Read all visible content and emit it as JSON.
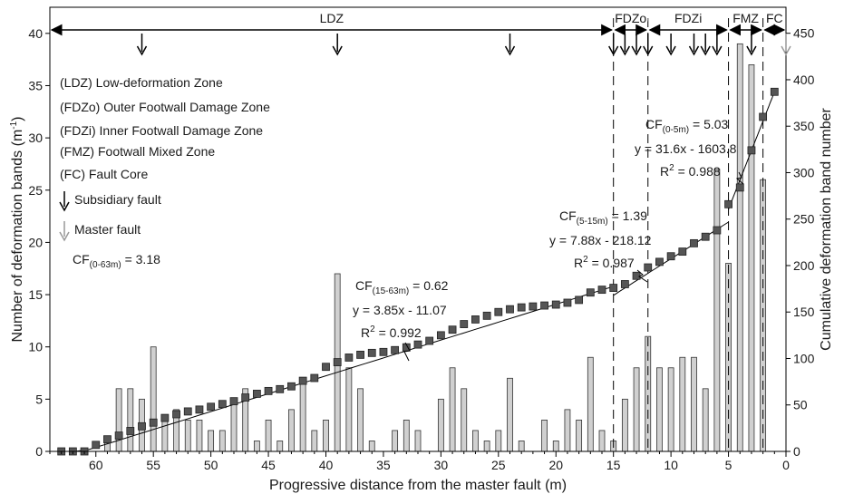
{
  "chart_data": {
    "type": "bar",
    "xlabel": "Progressive distance from the master fault (m)",
    "ylabel_left": "Number of deformation bands (m",
    "ylabel_left_sup": "-1",
    "ylabel_left_end": ")",
    "ylabel_right": "Cumulative deformation band number",
    "xlim": [
      64,
      0
    ],
    "ylim_left": [
      0,
      42.5
    ],
    "ylim_right": [
      0,
      478
    ],
    "x_ticks": [
      60,
      55,
      50,
      45,
      40,
      35,
      30,
      25,
      20,
      15,
      10,
      5,
      0
    ],
    "y_left_ticks": [
      0,
      5,
      10,
      15,
      20,
      25,
      30,
      35,
      40
    ],
    "y_right_ticks": [
      0,
      50,
      100,
      150,
      200,
      250,
      300,
      350,
      400,
      450
    ],
    "bars": {
      "name": "Number of deformation bands",
      "color": "#d0d0d0",
      "x": [
        63,
        62,
        61,
        60,
        59,
        58,
        57,
        56,
        55,
        54,
        53,
        52,
        51,
        50,
        49,
        48,
        47,
        46,
        45,
        44,
        43,
        42,
        41,
        40,
        39,
        38,
        37,
        36,
        35,
        34,
        33,
        32,
        31,
        30,
        29,
        28,
        27,
        26,
        25,
        24,
        23,
        22,
        21,
        20,
        19,
        18,
        17,
        16,
        15,
        14,
        13,
        12,
        11,
        10,
        9,
        8,
        7,
        6,
        5,
        4,
        3,
        2,
        1
      ],
      "values": [
        0,
        0,
        0,
        0,
        1,
        6,
        6,
        5,
        10,
        3,
        4,
        3,
        3,
        2,
        2,
        5,
        6,
        1,
        3,
        1,
        4,
        7,
        2,
        3,
        17,
        8,
        6,
        1,
        0,
        2,
        3,
        2,
        0,
        5,
        8,
        6,
        2,
        1,
        2,
        7,
        1,
        0,
        3,
        1,
        4,
        3,
        9,
        2,
        1,
        5,
        8,
        11,
        8,
        8,
        9,
        9,
        6,
        27,
        18,
        39,
        37,
        26,
        0
      ]
    },
    "cumulative": {
      "name": "Cumulative deformation band number",
      "color": "#555555",
      "x": [
        63,
        62,
        61,
        60,
        59,
        58,
        57,
        56,
        55,
        54,
        53,
        52,
        51,
        50,
        49,
        48,
        47,
        46,
        45,
        44,
        43,
        42,
        41,
        40,
        39,
        38,
        37,
        36,
        35,
        34,
        33,
        32,
        31,
        30,
        29,
        28,
        27,
        26,
        25,
        24,
        23,
        22,
        21,
        20,
        19,
        18,
        17,
        16,
        15,
        14,
        13,
        12,
        11,
        10,
        9,
        8,
        7,
        6,
        5,
        4,
        3,
        2,
        1
      ],
      "values": [
        0,
        0,
        0,
        7,
        13,
        17,
        22,
        27,
        31,
        36,
        40,
        43,
        45,
        48,
        51,
        54,
        58,
        62,
        65,
        67,
        70,
        76,
        79,
        91,
        96,
        101,
        104,
        106,
        107,
        109,
        112,
        115,
        119,
        125,
        131,
        137,
        142,
        146,
        150,
        153,
        155,
        156,
        157,
        158,
        160,
        163,
        171,
        174,
        176,
        180,
        189,
        198,
        204,
        210,
        215,
        224,
        231,
        238,
        266,
        284,
        324,
        360,
        387
      ]
    },
    "fits": [
      {
        "x1": 63,
        "x2": 15,
        "a": 3.85,
        "b": -11.07
      },
      {
        "x1": 15,
        "x2": 5,
        "a": 7.88,
        "b": -218.12
      },
      {
        "x1": 5,
        "x2": 1,
        "a": 31.6,
        "b": -1603.8
      }
    ],
    "zones": [
      {
        "label": "LDZ",
        "from": 64,
        "to": 15
      },
      {
        "label": "FDZo",
        "from": 15,
        "to": 12
      },
      {
        "label": "FDZi",
        "from": 12,
        "to": 5
      },
      {
        "label": "FMZ",
        "from": 5,
        "to": 2
      },
      {
        "label": "FC",
        "from": 2,
        "to": 0
      }
    ],
    "zone_boundaries": [
      15,
      12,
      5,
      2
    ],
    "subsidiary_fault_x": [
      56,
      39,
      24,
      15,
      14,
      13,
      12,
      10,
      8,
      7,
      6,
      3
    ],
    "master_fault_x": [
      0
    ],
    "legend": {
      "items": [
        "(LDZ) Low-deformation Zone",
        "(FDZo) Outer Footwall Damage Zone",
        "(FDZi) Inner Footwall Damage Zone",
        "(FMZ) Footwall Mixed Zone",
        "(FC) Fault Core"
      ],
      "subsidiary": "Subsidiary fault",
      "master": "Master fault",
      "cf_main": "CF",
      "cf_main_sub": "(0-63m)",
      "cf_main_val": " = 3.18"
    },
    "annotations": [
      {
        "cf": "CF",
        "cf_sub": "(15-63m)",
        "cf_val": " = 0.62",
        "eq": "y = 3.85x - 11.07",
        "r2": "R",
        "r2_sup": "2",
        "r2_val": " = 0.992"
      },
      {
        "cf": "CF",
        "cf_sub": "(5-15m)",
        "cf_val": " = 1.39",
        "eq": "y = 7.88x - 218.12",
        "r2": "R",
        "r2_sup": "2",
        "r2_val": " = 0.987"
      },
      {
        "cf": "CF",
        "cf_sub": "(0-5m)",
        "cf_val": " = 5.03",
        "eq": "y = 31.6x - 1603.8",
        "r2": "R",
        "r2_sup": "2",
        "r2_val": " = 0.988"
      }
    ],
    "colors": {
      "arrow_subsidiary": "#000000",
      "arrow_master": "#999999"
    }
  }
}
